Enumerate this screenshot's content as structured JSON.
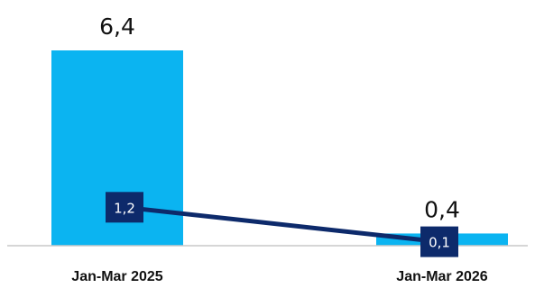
{
  "chart_data": {
    "type": "bar",
    "categories": [
      "Jan-Mar 2025",
      "Jan-Mar 2026"
    ],
    "series": [
      {
        "type": "bar",
        "values": [
          6.4,
          0.4
        ],
        "labels": [
          "6,4",
          "0,4"
        ],
        "color": "#0BB4F1"
      },
      {
        "type": "line",
        "values": [
          1.2,
          0.1
        ],
        "labels": [
          "1,2",
          "0,1"
        ],
        "color": "#0D2A6B"
      }
    ],
    "ylim": [
      0,
      7
    ],
    "grid": false,
    "legend": "none",
    "axis_color": "#C8C8C8"
  }
}
